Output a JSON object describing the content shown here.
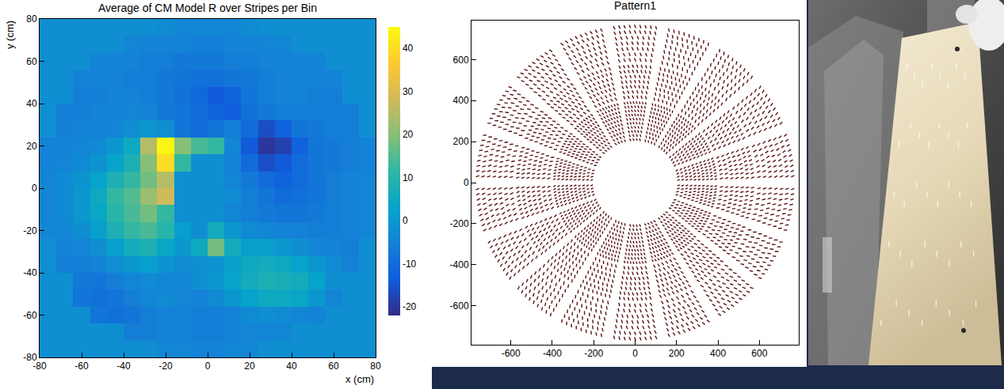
{
  "chart_data": [
    {
      "type": "heatmap",
      "title": "Average of CM Model R over Stripes per Bin",
      "x_label": "x (cm)",
      "y_label": "y (cm)",
      "x": [
        -76,
        -68,
        -60,
        -52,
        -44,
        -36,
        -28,
        -20,
        -12,
        -4,
        4,
        12,
        20,
        28,
        36,
        44,
        52,
        60,
        68,
        76
      ],
      "y": [
        -76,
        -68,
        -60,
        -52,
        -44,
        -36,
        -28,
        -20,
        -12,
        -4,
        4,
        12,
        20,
        28,
        36,
        44,
        52,
        60,
        68,
        76
      ],
      "z": [
        [
          -2,
          -2,
          -2,
          -2,
          -2,
          -2,
          -2,
          -4,
          -4,
          -5,
          -5,
          -4,
          -4,
          -2,
          -2,
          -2,
          -2,
          -2,
          -2,
          -2
        ],
        [
          -2,
          -2,
          -2,
          -2,
          -2,
          -6,
          -6,
          -5,
          -5,
          -6,
          -6,
          -5,
          -4,
          -4,
          -4,
          -2,
          -2,
          -2,
          -2,
          -2
        ],
        [
          -2,
          -2,
          -2,
          -8,
          -9,
          -8,
          -6,
          -5,
          -5,
          -6,
          -6,
          -5,
          -3,
          -2,
          -3,
          -4,
          -5,
          -2,
          -2,
          -2
        ],
        [
          -2,
          -2,
          -8,
          -9,
          -8,
          -6,
          -4,
          -3,
          -4,
          -5,
          -3,
          0,
          3,
          5,
          5,
          4,
          0,
          -4,
          -2,
          -2
        ],
        [
          -2,
          -2,
          -7,
          -8,
          -6,
          -4,
          -3,
          -4,
          -4,
          -2,
          0,
          3,
          6,
          8,
          7,
          6,
          3,
          -2,
          -2,
          -2
        ],
        [
          -2,
          -6,
          -6,
          -5,
          -2,
          0,
          2,
          -1,
          -3,
          -2,
          -1,
          2,
          5,
          6,
          5,
          3,
          0,
          -3,
          -5,
          -2
        ],
        [
          -2,
          -5,
          -4,
          -2,
          2,
          6,
          8,
          4,
          0,
          5,
          18,
          6,
          2,
          2,
          0,
          -2,
          -4,
          -5,
          -6,
          -2
        ],
        [
          -4,
          -4,
          -2,
          2,
          8,
          12,
          14,
          10,
          2,
          -2,
          6,
          0,
          -3,
          -4,
          -5,
          -5,
          -6,
          -6,
          -5,
          -4
        ],
        [
          -4,
          -3,
          0,
          4,
          10,
          14,
          18,
          12,
          -2,
          -2,
          -2,
          -4,
          -6,
          -7,
          -8,
          -8,
          -7,
          -6,
          -5,
          -4
        ],
        [
          -4,
          -3,
          0,
          5,
          12,
          15,
          22,
          28,
          -2,
          -2,
          -2,
          -3,
          -6,
          -8,
          -10,
          -9,
          -8,
          -6,
          -5,
          -4
        ],
        [
          -4,
          -3,
          -1,
          3,
          8,
          12,
          18,
          25,
          -2,
          -2,
          -2,
          -4,
          -7,
          -10,
          -12,
          -10,
          -8,
          -6,
          -5,
          -4
        ],
        [
          -5,
          -4,
          -3,
          -1,
          3,
          8,
          20,
          40,
          12,
          -2,
          -2,
          -5,
          -10,
          -16,
          -14,
          -10,
          -8,
          -7,
          -6,
          -5
        ],
        [
          -5,
          -5,
          -4,
          -3,
          0,
          5,
          25,
          44,
          20,
          14,
          12,
          -4,
          -14,
          -20,
          -18,
          -12,
          -8,
          -7,
          -6,
          -5
        ],
        [
          -2,
          -6,
          -5,
          -5,
          -4,
          -2,
          0,
          -2,
          -8,
          -10,
          -8,
          -6,
          -10,
          -16,
          -12,
          -8,
          -7,
          -6,
          -6,
          -2
        ],
        [
          -2,
          -6,
          -6,
          -5,
          -5,
          -4,
          -5,
          -7,
          -8,
          -10,
          -12,
          -13,
          -9,
          -7,
          -6,
          -6,
          -6,
          -6,
          -6,
          -2
        ],
        [
          -2,
          -2,
          -6,
          -6,
          -5,
          -5,
          -6,
          -7,
          -9,
          -11,
          -14,
          -12,
          -8,
          -6,
          -5,
          -5,
          -6,
          -6,
          -2,
          -2
        ],
        [
          -2,
          -2,
          -5,
          -5,
          -5,
          -6,
          -6,
          -7,
          -8,
          -9,
          -9,
          -8,
          -7,
          -6,
          -5,
          -5,
          -5,
          -5,
          -2,
          -2
        ],
        [
          -2,
          -2,
          -2,
          -5,
          -5,
          -5,
          -6,
          -6,
          -7,
          -7,
          -7,
          -6,
          -6,
          -5,
          -5,
          -5,
          -5,
          -2,
          -2,
          -2
        ],
        [
          -2,
          -2,
          -2,
          -2,
          -2,
          -4,
          -5,
          -5,
          -5,
          -6,
          -6,
          -5,
          -5,
          -4,
          -4,
          -2,
          -2,
          -2,
          -2,
          -2
        ],
        [
          -2,
          -2,
          -2,
          -2,
          -2,
          -2,
          -2,
          -3,
          -4,
          -4,
          -4,
          -4,
          -3,
          -2,
          -2,
          -2,
          -2,
          -2,
          -2,
          -2
        ]
      ],
      "xlim": [
        -80,
        80
      ],
      "ylim": [
        -80,
        80
      ],
      "xticks": [
        -80,
        -60,
        -40,
        -20,
        0,
        20,
        40,
        60,
        80
      ],
      "yticks": [
        -80,
        -60,
        -40,
        -20,
        0,
        20,
        40,
        60,
        80
      ],
      "zlim": [
        -22,
        45
      ],
      "zticks": [
        -20,
        -10,
        0,
        10,
        20,
        30,
        40
      ]
    },
    {
      "type": "pattern",
      "title": "Pattern1",
      "color": "#5c1414",
      "xlim": [
        -790,
        790
      ],
      "ylim": [
        -790,
        790
      ],
      "xticks": [
        -600,
        -400,
        -200,
        0,
        200,
        400,
        600
      ],
      "yticks": [
        -600,
        -400,
        -200,
        0,
        200,
        400,
        600
      ],
      "sectors": 18,
      "rings": [
        {
          "r_inner": 200,
          "r_outer": 400,
          "rows": 10,
          "spacing": 14
        },
        {
          "r_inner": 405,
          "r_outer": 580,
          "rows": 7,
          "spacing": 20
        },
        {
          "r_inner": 585,
          "r_outer": 775,
          "rows": 7,
          "spacing": 24
        }
      ]
    }
  ]
}
